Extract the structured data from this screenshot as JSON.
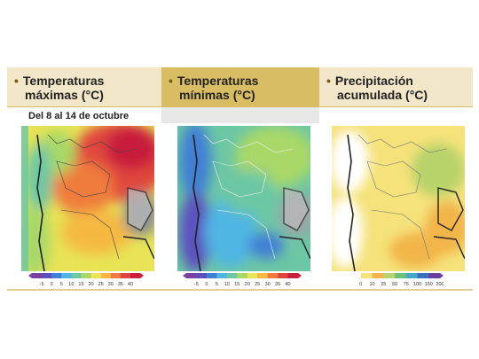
{
  "panels": [
    {
      "bullet": "•",
      "title_line1": "Temperaturas",
      "title_line2": "máximas (°C)"
    },
    {
      "bullet": "•",
      "title_line1": "Temperaturas",
      "title_line2": "mínimas (°C)"
    },
    {
      "bullet": "•",
      "title_line1": "Precipitación",
      "title_line2": "acumulada (°C)"
    }
  ],
  "date_range": "Del 8 al 14 de octubre",
  "scales": {
    "max_temp": {
      "ticks": [
        "-5",
        "0",
        "5",
        "10",
        "15",
        "20",
        "25",
        "30",
        "35",
        "40"
      ],
      "colors": [
        "#7a3fa0",
        "#5b4fc0",
        "#3f7fd6",
        "#4fb6e3",
        "#6cc7a4",
        "#a9d867",
        "#e8e455",
        "#f5b942",
        "#ef7b3e",
        "#e0463d",
        "#c81f3c"
      ]
    },
    "min_temp": {
      "ticks": [
        "-5",
        "0",
        "5",
        "10",
        "15",
        "20",
        "25",
        "30",
        "35",
        "40"
      ],
      "colors": [
        "#7a3fa0",
        "#5b4fc0",
        "#3f7fd6",
        "#4fb6e3",
        "#6cc7a4",
        "#a9d867",
        "#e8e455",
        "#f5b942",
        "#ef7b3e",
        "#e0463d",
        "#c81f3c"
      ]
    },
    "precip": {
      "ticks": [
        "0",
        "10",
        "25",
        "50",
        "75",
        "100",
        "150",
        "200"
      ],
      "colors": [
        "#ffffff",
        "#f5e27a",
        "#f2b54a",
        "#b7d36a",
        "#6cc07a",
        "#43a7c9",
        "#3b6fc0",
        "#6a3fa0"
      ]
    }
  }
}
